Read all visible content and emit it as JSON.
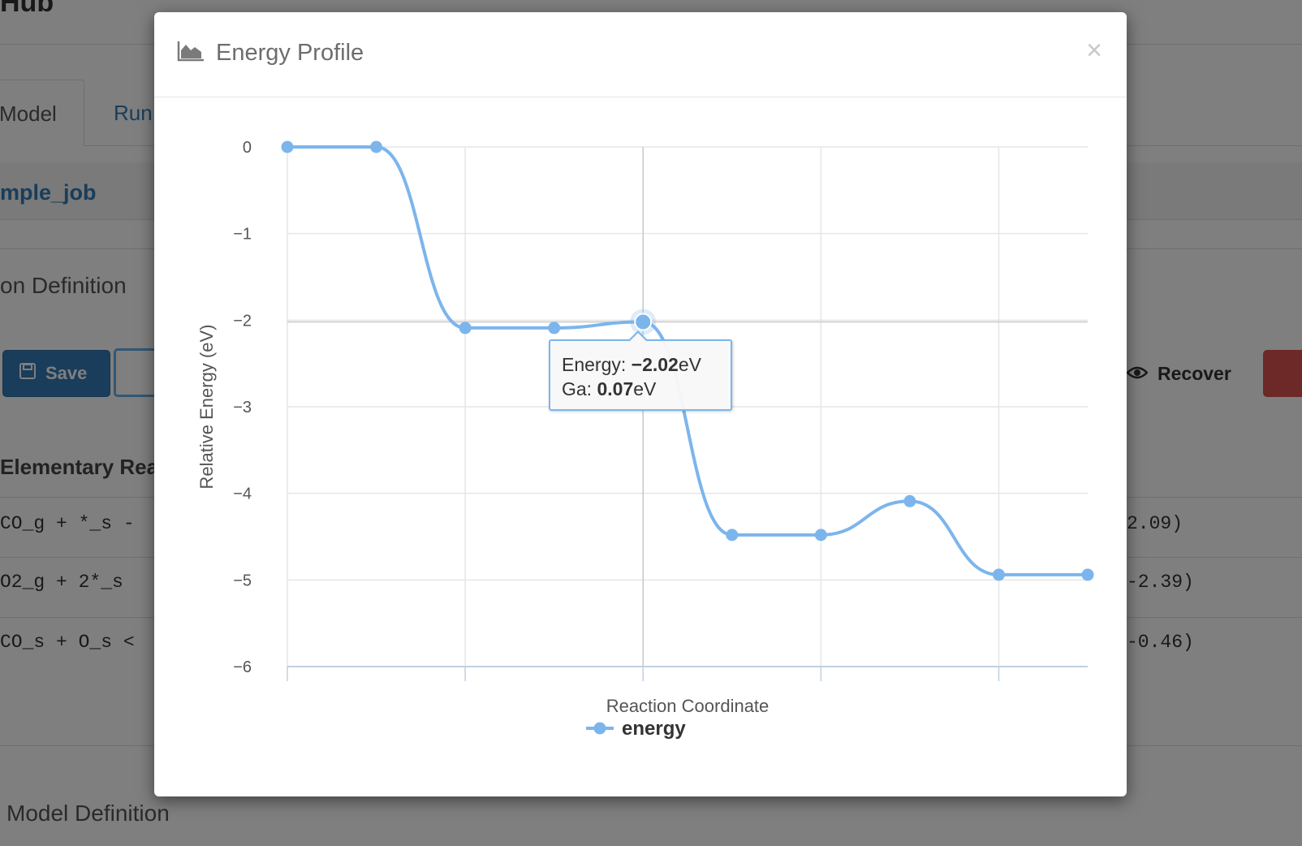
{
  "background": {
    "brand_fragment": "Hub",
    "tabs": [
      {
        "label": "Model"
      },
      {
        "label": "Run"
      }
    ],
    "job_name_fragment": "mple_job",
    "section_1_fragment": "on Definition",
    "save_label": "Save",
    "recover_label": "Recover",
    "elementary_reactions_fragment": "Elementary Rea",
    "reaction_rows": [
      {
        "left": "CO_g + *_s -",
        "right": "2.09)"
      },
      {
        "left": "O2_g + 2*_s",
        "right": "-2.39)"
      },
      {
        "left": "CO_s + O_s <",
        "right": "-0.46)"
      }
    ],
    "section_2_fragment": "Model Definition"
  },
  "modal": {
    "title": "Energy Profile",
    "close_symbol": "×",
    "title_icon": "area-chart-icon"
  },
  "tooltip": {
    "energy_label": "Energy: ",
    "energy_value": "−2.02",
    "energy_unit": "eV",
    "ga_label": "Ga: ",
    "ga_value": "0.07",
    "ga_unit": "eV"
  },
  "chart_data": {
    "type": "line",
    "title": "",
    "xlabel": "Reaction Coordinate",
    "ylabel": "Relative Energy (eV)",
    "ylim": [
      -6,
      0
    ],
    "yticks": [
      0,
      -1,
      -2,
      -3,
      -4,
      -5,
      -6
    ],
    "y_tick_labels": [
      "0",
      "−1",
      "−2",
      "−3",
      "−4",
      "−5",
      "−6"
    ],
    "grid": true,
    "legend_position": "bottom-center",
    "series": [
      {
        "name": "energy",
        "color": "#7cb5ec",
        "x": [
          0,
          1,
          2,
          3,
          4,
          5,
          6,
          7,
          8,
          9
        ],
        "values": [
          0,
          0,
          -2.09,
          -2.09,
          -2.02,
          -4.48,
          -4.48,
          -4.09,
          -4.94,
          -4.94
        ]
      }
    ],
    "highlighted_point_index": 4
  }
}
